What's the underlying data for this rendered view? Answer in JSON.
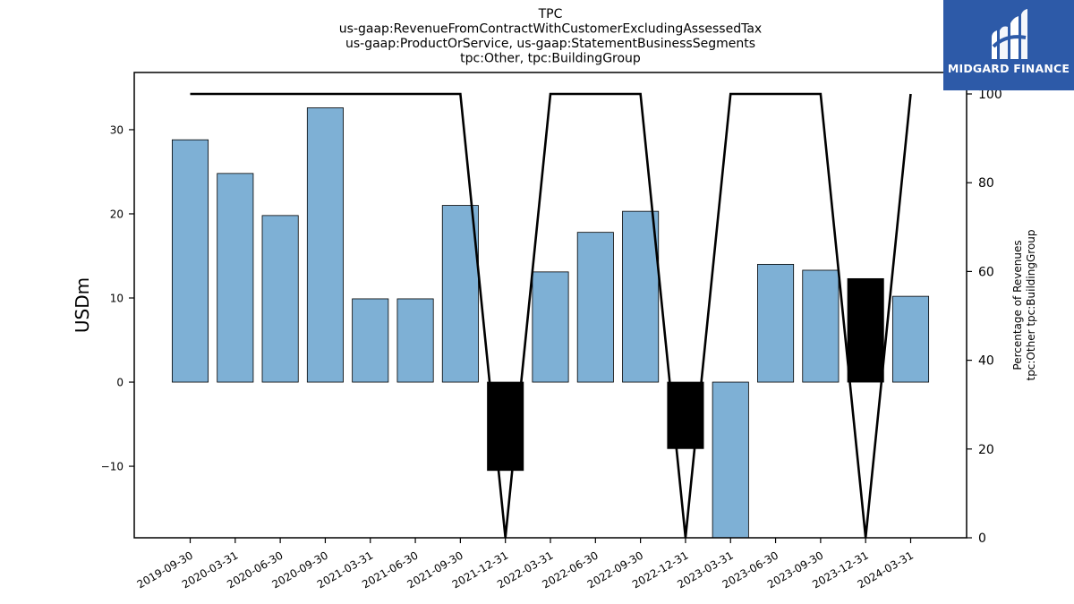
{
  "chart_data": {
    "type": "bar",
    "title_lines": [
      "TPC",
      "us-gaap:RevenueFromContractWithCustomerExcludingAssessedTax",
      "us-gaap:ProductOrService, us-gaap:StatementBusinessSegments",
      "tpc:Other, tpc:BuildingGroup"
    ],
    "ylabel": "USDm",
    "ylabel_right_lines": [
      "Percentage of Revenues",
      "tpc:Other tpc:BuildingGroup"
    ],
    "categories": [
      "2019-09-30",
      "2020-03-31",
      "2020-06-30",
      "2020-09-30",
      "2021-03-31",
      "2021-06-30",
      "2021-09-30",
      "2021-12-31",
      "2022-03-31",
      "2022-06-30",
      "2022-09-30",
      "2022-12-31",
      "2023-03-31",
      "2023-06-30",
      "2023-09-30",
      "2023-12-31",
      "2024-03-31"
    ],
    "values": [
      28.8,
      24.8,
      19.8,
      32.6,
      9.9,
      9.9,
      21.0,
      -10.5,
      13.1,
      17.8,
      20.3,
      -7.9,
      -18.5,
      14.0,
      13.3,
      12.3,
      10.2
    ],
    "bar_colors": [
      "#7eb0d5",
      "#7eb0d5",
      "#7eb0d5",
      "#7eb0d5",
      "#7eb0d5",
      "#7eb0d5",
      "#7eb0d5",
      "#000000",
      "#7eb0d5",
      "#7eb0d5",
      "#7eb0d5",
      "#000000",
      "#7eb0d5",
      "#7eb0d5",
      "#7eb0d5",
      "#000000",
      "#7eb0d5"
    ],
    "percentage_series": {
      "values": [
        100,
        100,
        100,
        100,
        100,
        100,
        100,
        0,
        100,
        100,
        100,
        0,
        100,
        100,
        100,
        0,
        100
      ],
      "color": "#000000"
    },
    "ylim": [
      -18.5,
      36.8
    ],
    "yticks": [
      -10,
      0,
      10,
      20,
      30
    ],
    "ylim_right": [
      0,
      100.0
    ],
    "yticks_right": [
      0,
      20,
      40,
      60,
      80,
      100
    ],
    "grid": false
  },
  "logo": {
    "text": "MIDGARD FINANCE"
  }
}
